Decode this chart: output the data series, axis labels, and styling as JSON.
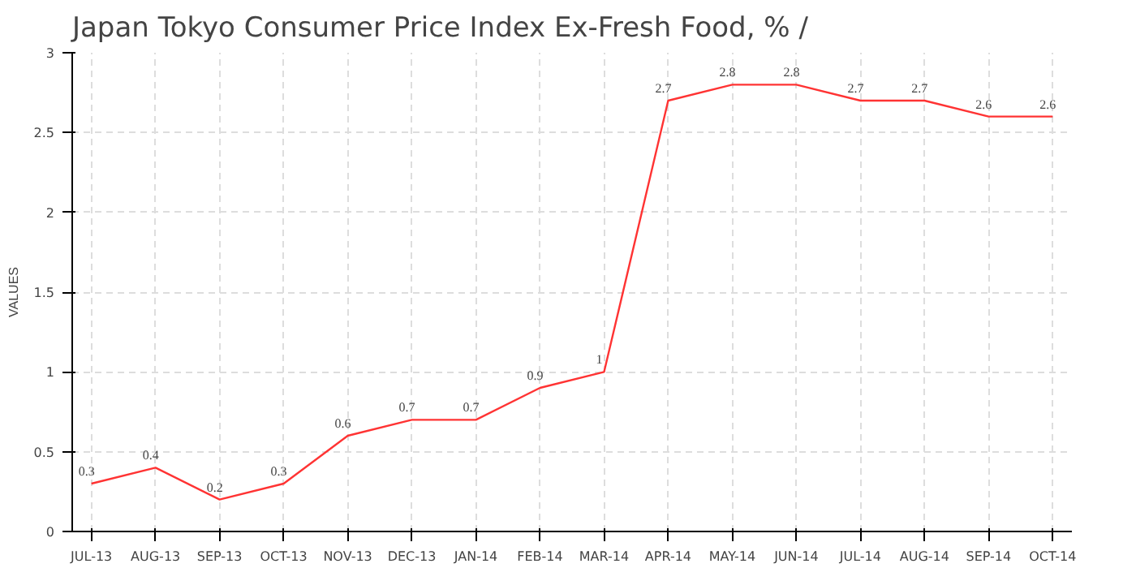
{
  "chart_data": {
    "type": "line",
    "title": "Japan Tokyo Consumer Price Index Ex-Fresh Food, %  /",
    "ylabel": "VALUES",
    "categories": [
      "JUL-13",
      "AUG-13",
      "SEP-13",
      "OCT-13",
      "NOV-13",
      "DEC-13",
      "JAN-14",
      "FEB-14",
      "MAR-14",
      "APR-14",
      "MAY-14",
      "JUN-14",
      "JUL-14",
      "AUG-14",
      "SEP-14",
      "OCT-14"
    ],
    "series": [
      {
        "color": "#ff3333",
        "values": [
          0.3,
          0.4,
          0.2,
          0.3,
          0.6,
          0.7,
          0.7,
          0.9,
          1,
          2.7,
          2.8,
          2.8,
          2.7,
          2.7,
          2.6,
          2.6
        ]
      }
    ],
    "ylim": [
      0,
      3
    ],
    "yticks": [
      0,
      0.5,
      1,
      1.5,
      2,
      2.5,
      3
    ],
    "grid": true,
    "data_labels": true,
    "marker": "none",
    "line_style": "solid"
  }
}
